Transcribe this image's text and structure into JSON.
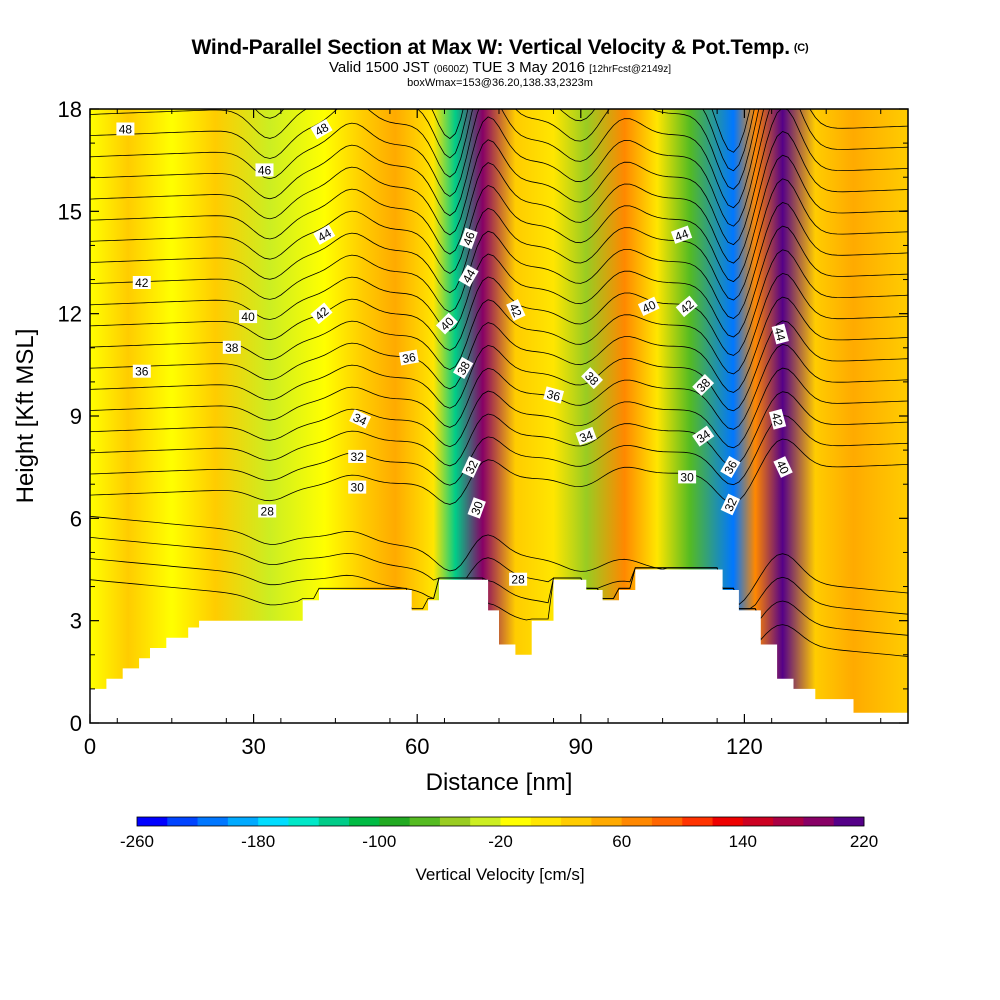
{
  "header": {
    "title": "Wind-Parallel Section at Max W: Vertical Velocity & Pot.Temp.",
    "copyright": "(C)",
    "valid_prefix": "Valid 1500 JST",
    "valid_utc": "(0600Z)",
    "valid_date": "TUE 3 May 2016",
    "forecast": "[12hrFcst@2149z]",
    "box_info": "boxWmax=153@36.20,138.33,2323m"
  },
  "chart_data": {
    "type": "heatmap",
    "title": "Wind-Parallel Section at Max W: Vertical Velocity & Pot.Temp.",
    "xlabel": "Distance [nm]",
    "ylabel": "Height [Kft MSL]",
    "xlim": [
      0,
      150
    ],
    "ylim": [
      0,
      18
    ],
    "x_ticks": [
      0,
      30,
      60,
      90,
      120
    ],
    "y_ticks": [
      0,
      3,
      6,
      9,
      12,
      15,
      18
    ],
    "colorbar": {
      "label": "Vertical Velocity [cm/s]",
      "tick_labels": [
        "-260",
        "-180",
        "-100",
        "-20",
        "60",
        "140",
        "220"
      ],
      "colors": [
        "#0000ff",
        "#0044ff",
        "#0077ff",
        "#00aaff",
        "#00ddff",
        "#00e8c8",
        "#00cc88",
        "#00bb44",
        "#22aa22",
        "#55bb22",
        "#99cc22",
        "#ccee22",
        "#ffff00",
        "#ffe600",
        "#ffcc00",
        "#ffaa00",
        "#ff8800",
        "#ff6600",
        "#ff3300",
        "#ee0000",
        "#cc0022",
        "#aa0044",
        "#880066",
        "#550088"
      ]
    },
    "velocity_bands": [
      {
        "x": 0,
        "value": -20
      },
      {
        "x": 7,
        "value": 20
      },
      {
        "x": 15,
        "value": -20
      },
      {
        "x": 23,
        "value": 20
      },
      {
        "x": 33,
        "value": -40
      },
      {
        "x": 43,
        "value": -20
      },
      {
        "x": 50,
        "value": 20
      },
      {
        "x": 56,
        "value": 40
      },
      {
        "x": 63,
        "value": 0
      },
      {
        "x": 67,
        "value": -140
      },
      {
        "x": 72,
        "value": 180
      },
      {
        "x": 78,
        "value": 20
      },
      {
        "x": 85,
        "value": 0
      },
      {
        "x": 91,
        "value": -60
      },
      {
        "x": 98,
        "value": 60
      },
      {
        "x": 104,
        "value": 0
      },
      {
        "x": 110,
        "value": -80
      },
      {
        "x": 118,
        "value": -220
      },
      {
        "x": 122,
        "value": 60
      },
      {
        "x": 127,
        "value": 220
      },
      {
        "x": 133,
        "value": 20
      },
      {
        "x": 140,
        "value": 40
      },
      {
        "x": 150,
        "value": 20
      }
    ],
    "contour_labels": [
      {
        "text": "48",
        "x": 6.5,
        "y": 17.4,
        "angle": 0
      },
      {
        "text": "48",
        "x": 42.5,
        "y": 17.4,
        "angle": 30
      },
      {
        "text": "46",
        "x": 32,
        "y": 16.2,
        "angle": 0
      },
      {
        "text": "44",
        "x": 43,
        "y": 14.3,
        "angle": 30
      },
      {
        "text": "42",
        "x": 9.5,
        "y": 12.9,
        "angle": 0
      },
      {
        "text": "42",
        "x": 42.5,
        "y": 12.0,
        "angle": 40
      },
      {
        "text": "40",
        "x": 29,
        "y": 11.9,
        "angle": 0
      },
      {
        "text": "38",
        "x": 26,
        "y": 11.0,
        "angle": 0
      },
      {
        "text": "36",
        "x": 9.5,
        "y": 10.3,
        "angle": 0
      },
      {
        "text": "36",
        "x": 58.5,
        "y": 10.7,
        "angle": 10
      },
      {
        "text": "34",
        "x": 49.5,
        "y": 8.9,
        "angle": -25
      },
      {
        "text": "32",
        "x": 49,
        "y": 7.8,
        "angle": 0
      },
      {
        "text": "30",
        "x": 49,
        "y": 6.9,
        "angle": 0
      },
      {
        "text": "28",
        "x": 32.5,
        "y": 6.2,
        "angle": 0
      },
      {
        "text": "46",
        "x": 69.5,
        "y": 14.2,
        "angle": 70
      },
      {
        "text": "44",
        "x": 69.5,
        "y": 13.1,
        "angle": 60
      },
      {
        "text": "40",
        "x": 65.5,
        "y": 11.7,
        "angle": 45
      },
      {
        "text": "38",
        "x": 68.5,
        "y": 10.4,
        "angle": 60
      },
      {
        "text": "32",
        "x": 70,
        "y": 7.5,
        "angle": 65
      },
      {
        "text": "30",
        "x": 71,
        "y": 6.3,
        "angle": 70
      },
      {
        "text": "28",
        "x": 78.5,
        "y": 4.2,
        "angle": 0
      },
      {
        "text": "42",
        "x": 78,
        "y": 12.1,
        "angle": -65
      },
      {
        "text": "38",
        "x": 92,
        "y": 10.1,
        "angle": -45
      },
      {
        "text": "36",
        "x": 85,
        "y": 9.6,
        "angle": -15
      },
      {
        "text": "34",
        "x": 91,
        "y": 8.4,
        "angle": 20
      },
      {
        "text": "30",
        "x": 109.5,
        "y": 7.2,
        "angle": 0
      },
      {
        "text": "44",
        "x": 108.5,
        "y": 14.3,
        "angle": 20
      },
      {
        "text": "40",
        "x": 102.5,
        "y": 12.2,
        "angle": 25
      },
      {
        "text": "42",
        "x": 109.5,
        "y": 12.2,
        "angle": 40
      },
      {
        "text": "38",
        "x": 112.5,
        "y": 9.9,
        "angle": 45
      },
      {
        "text": "34",
        "x": 112.5,
        "y": 8.4,
        "angle": 35
      },
      {
        "text": "36",
        "x": 117.5,
        "y": 7.5,
        "angle": 60
      },
      {
        "text": "32",
        "x": 117.5,
        "y": 6.4,
        "angle": 65
      },
      {
        "text": "44",
        "x": 126.5,
        "y": 11.4,
        "angle": -75
      },
      {
        "text": "42",
        "x": 126,
        "y": 8.9,
        "angle": -75
      },
      {
        "text": "40",
        "x": 127,
        "y": 7.5,
        "angle": -65
      }
    ],
    "terrain": [
      [
        0,
        1
      ],
      [
        3,
        1
      ],
      [
        3,
        1.3
      ],
      [
        6,
        1.3
      ],
      [
        6,
        1.6
      ],
      [
        9,
        1.6
      ],
      [
        9,
        1.9
      ],
      [
        11,
        1.9
      ],
      [
        11,
        2.2
      ],
      [
        14,
        2.2
      ],
      [
        14,
        2.5
      ],
      [
        18,
        2.5
      ],
      [
        18,
        2.8
      ],
      [
        20,
        2.8
      ],
      [
        20,
        3.0
      ],
      [
        22,
        3.0
      ],
      [
        22,
        3.0
      ],
      [
        39,
        3.0
      ],
      [
        39,
        3.6
      ],
      [
        42,
        3.6
      ],
      [
        42,
        3.9
      ],
      [
        59,
        3.9
      ],
      [
        59,
        3.3
      ],
      [
        62,
        3.3
      ],
      [
        62,
        3.6
      ],
      [
        64,
        3.6
      ],
      [
        64,
        4.2
      ],
      [
        71,
        4.2
      ],
      [
        71,
        4.2
      ],
      [
        73,
        4.2
      ],
      [
        73,
        3.3
      ],
      [
        75,
        3.3
      ],
      [
        75,
        2.3
      ],
      [
        78,
        2.3
      ],
      [
        78,
        2.0
      ],
      [
        81,
        2.0
      ],
      [
        81,
        3.0
      ],
      [
        85,
        3.0
      ],
      [
        85,
        4.2
      ],
      [
        91,
        4.2
      ],
      [
        91,
        3.9
      ],
      [
        94,
        3.9
      ],
      [
        94,
        3.6
      ],
      [
        97,
        3.6
      ],
      [
        97,
        3.9
      ],
      [
        100,
        3.9
      ],
      [
        100,
        4.5
      ],
      [
        104,
        4.5
      ],
      [
        104,
        4.5
      ],
      [
        116,
        4.5
      ],
      [
        116,
        3.9
      ],
      [
        119,
        3.9
      ],
      [
        119,
        3.3
      ],
      [
        123,
        3.3
      ],
      [
        123,
        2.3
      ],
      [
        126,
        2.3
      ],
      [
        126,
        1.3
      ],
      [
        129,
        1.3
      ],
      [
        129,
        1.0
      ],
      [
        133,
        1.0
      ],
      [
        133,
        0.7
      ],
      [
        140,
        0.7
      ],
      [
        140,
        0.3
      ],
      [
        150,
        0.3
      ]
    ]
  }
}
